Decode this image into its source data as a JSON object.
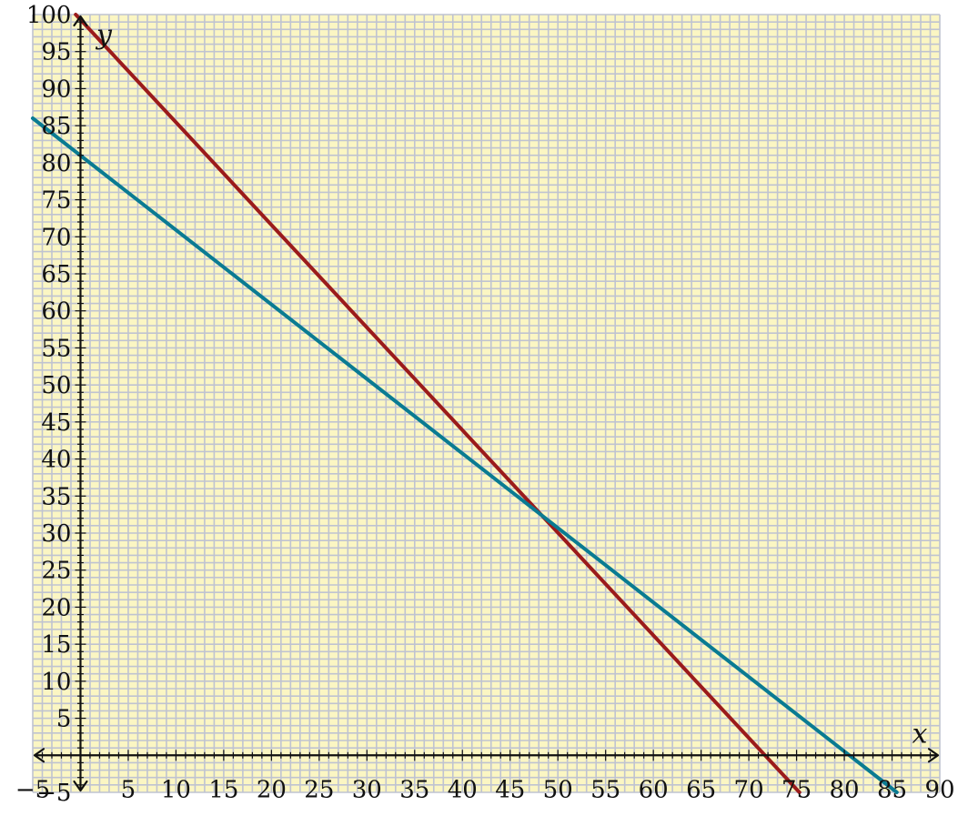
{
  "chart_data": {
    "type": "line",
    "title": "",
    "xlabel": "x",
    "ylabel": "y",
    "xlim": [
      -5,
      90
    ],
    "ylim": [
      -5,
      100
    ],
    "grid": true,
    "minor_grid_step": 1,
    "x_ticks": [
      -5,
      5,
      10,
      15,
      20,
      25,
      30,
      35,
      40,
      45,
      50,
      55,
      60,
      65,
      70,
      75,
      80,
      85,
      90
    ],
    "y_ticks": [
      -5,
      5,
      10,
      15,
      20,
      25,
      30,
      35,
      40,
      45,
      50,
      55,
      60,
      65,
      70,
      75,
      80,
      85,
      90,
      95,
      100
    ],
    "x_tick_labels": [
      "−5",
      "5",
      "10",
      "15",
      "20",
      "25",
      "30",
      "35",
      "40",
      "45",
      "50",
      "55",
      "60",
      "65",
      "70",
      "75",
      "80",
      "85",
      "90"
    ],
    "y_tick_labels": [
      "−5",
      "5",
      "10",
      "15",
      "20",
      "25",
      "30",
      "35",
      "40",
      "45",
      "50",
      "55",
      "60",
      "65",
      "70",
      "75",
      "80",
      "85",
      "90",
      "95",
      "100"
    ],
    "series": [
      {
        "x": [
          -0.5,
          75.3
        ],
        "y": [
          100,
          -5
        ],
        "color": "#9b1b1b"
      },
      {
        "x": [
          -5,
          85.5
        ],
        "y": [
          86,
          -5
        ],
        "color": "#0a7b92"
      }
    ],
    "colors": {
      "background": "#fbf6c3",
      "grid": "#bfc3d1",
      "axis": "#111111"
    }
  }
}
